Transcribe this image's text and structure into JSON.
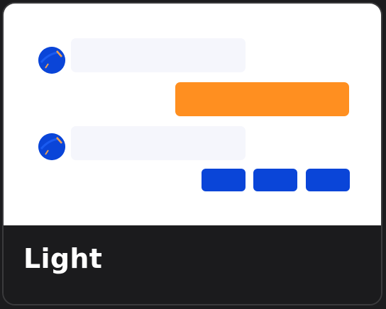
{
  "theme_option": {
    "label": "Light",
    "preview": {
      "incoming_bubble_color": "#f5f6fc",
      "outgoing_bubble_color": "#ff8f20",
      "chip_color": "#0a45d8",
      "avatar_color": "#0a45d8",
      "background_color": "#ffffff"
    }
  }
}
